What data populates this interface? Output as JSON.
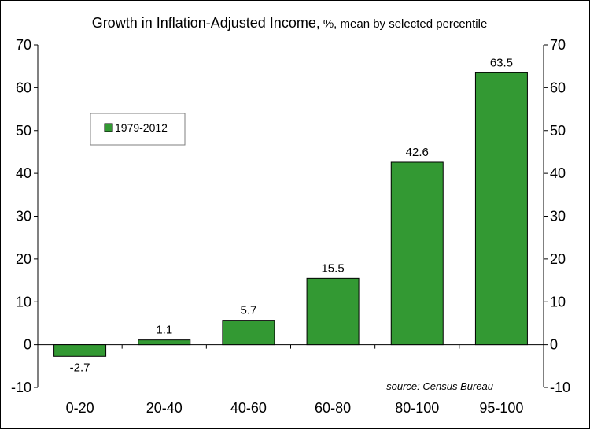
{
  "chart_data": {
    "type": "bar",
    "title": "Growth in Inflation-Adjusted Income,",
    "subtitle": "%, mean by selected percentile",
    "categories": [
      "0-20",
      "20-40",
      "40-60",
      "60-80",
      "80-100",
      "95-100"
    ],
    "series": [
      {
        "name": "1979-2012",
        "values": [
          -2.7,
          1.1,
          5.7,
          15.5,
          42.6,
          63.5
        ],
        "color": "#339933"
      }
    ],
    "data_labels": [
      "-2.7",
      "1.1",
      "5.7",
      "15.5",
      "42.6",
      "63.5"
    ],
    "ylim": [
      -10,
      70
    ],
    "yticks": [
      -10,
      0,
      10,
      20,
      30,
      40,
      50,
      60,
      70
    ],
    "ytick_labels": [
      "-10",
      "0",
      "10",
      "20",
      "30",
      "40",
      "50",
      "60",
      "70"
    ],
    "secondary_axis": true,
    "grid": false,
    "legend_position": "upper-left",
    "source": "source: Census Bureau",
    "xlabel": "",
    "ylabel": ""
  }
}
